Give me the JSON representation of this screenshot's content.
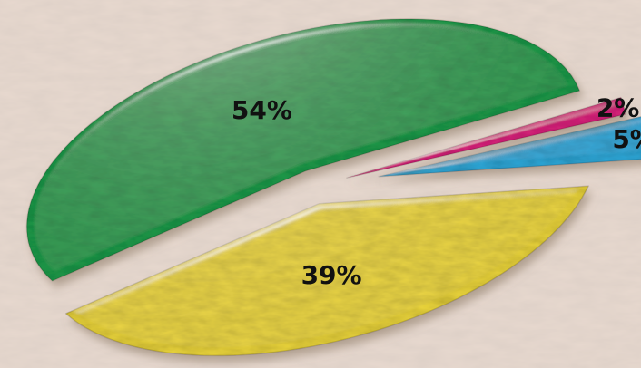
{
  "chart_data": {
    "type": "pie",
    "style": "exploded 3D textured pie",
    "categories": [
      "",
      "",
      "",
      ""
    ],
    "values": [
      54,
      39,
      5,
      2
    ],
    "labels": [
      "54%",
      "39%",
      "5%",
      "2%"
    ],
    "colors": [
      "#1a9a4a",
      "#ead43a",
      "#2fa7d8",
      "#d8207a"
    ],
    "title": "",
    "legend": "none"
  },
  "colors": {
    "background": "#e8d9cf",
    "label_text": "#111111"
  }
}
